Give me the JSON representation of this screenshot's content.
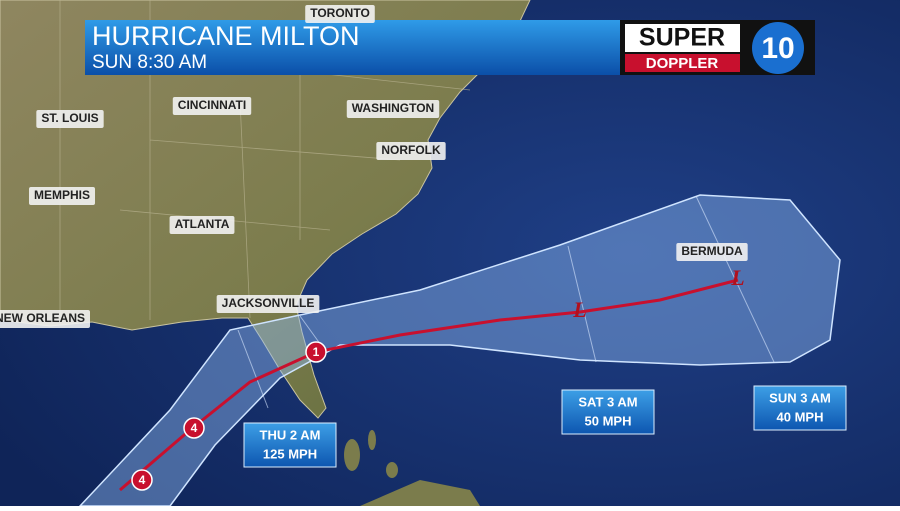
{
  "header": {
    "title": "HURRICANE MILTON",
    "time": "SUN 8:30 AM"
  },
  "logo": {
    "top": "SUPER",
    "bottom": "DOPPLER",
    "channel": "10"
  },
  "cities": [
    {
      "label": "TORONTO"
    },
    {
      "label": "CINCINNATI"
    },
    {
      "label": "ST. LOUIS"
    },
    {
      "label": "WASHINGTON"
    },
    {
      "label": "NORFOLK"
    },
    {
      "label": "MEMPHIS"
    },
    {
      "label": "ATLANTA"
    },
    {
      "label": "JACKSONVILLE"
    },
    {
      "label": "NEW ORLEANS"
    },
    {
      "label": "BERMUDA"
    }
  ],
  "forecast_points": [
    {
      "time": "THU 2 AM",
      "wind": "125 MPH"
    },
    {
      "time": "SAT 3 AM",
      "wind": "50 MPH"
    },
    {
      "time": "SUN 3 AM",
      "wind": "40 MPH"
    }
  ],
  "track_markers": [
    {
      "label": "4"
    },
    {
      "label": "4"
    },
    {
      "label": "1"
    },
    {
      "label": "L"
    },
    {
      "label": "L"
    }
  ]
}
